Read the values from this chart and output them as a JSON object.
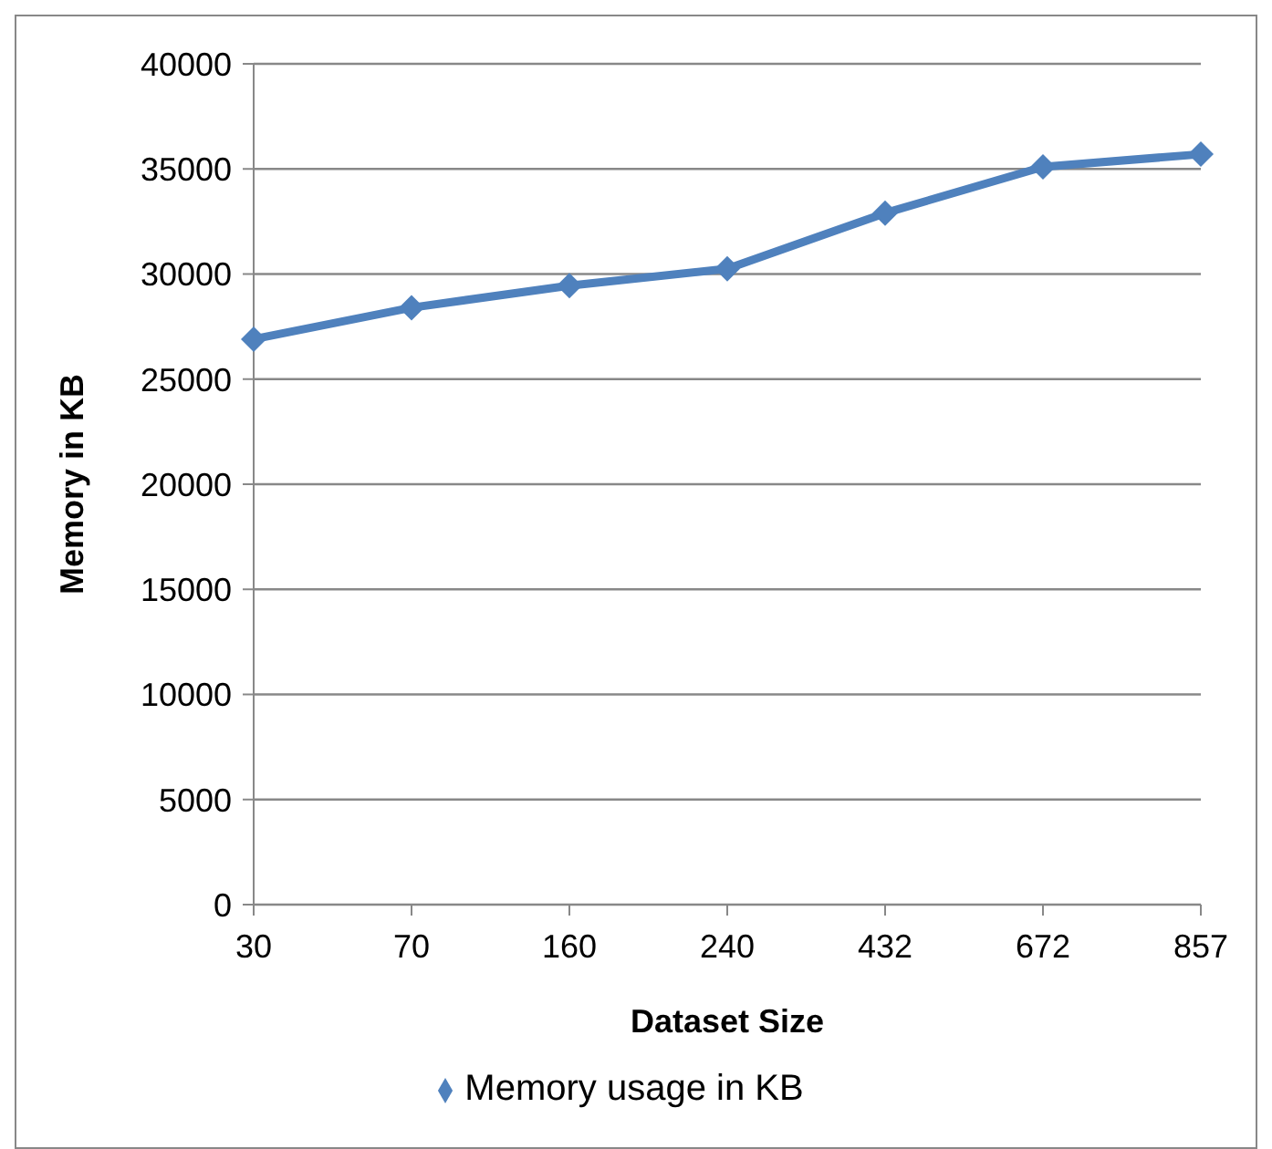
{
  "chart_data": {
    "type": "line",
    "xlabel": "Dataset Size",
    "ylabel": "Memory in KB",
    "categories": [
      "30",
      "70",
      "160",
      "240",
      "432",
      "672",
      "857"
    ],
    "series": [
      {
        "name": "Memory usage in KB",
        "color": "#4f81bd",
        "values": [
          26900,
          28400,
          29450,
          30250,
          32900,
          35100,
          35700
        ]
      }
    ],
    "ylim": [
      0,
      40000
    ],
    "yticks": [
      0,
      5000,
      10000,
      15000,
      20000,
      25000,
      30000,
      35000,
      40000
    ],
    "grid": "y",
    "legend": "bottom",
    "marker": "diamond",
    "line_style": "solid"
  }
}
